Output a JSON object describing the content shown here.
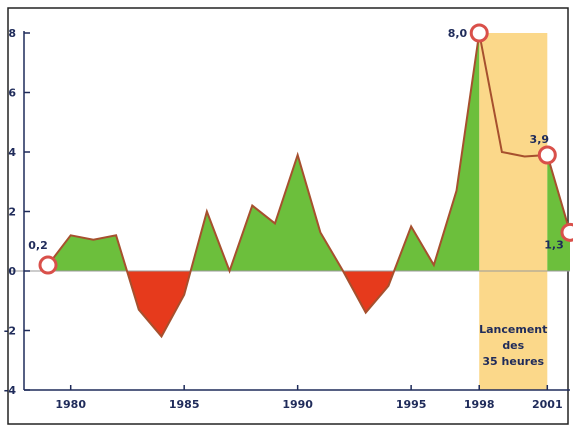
{
  "chart_data": {
    "type": "area",
    "title": "",
    "xlabel": "",
    "ylabel": "",
    "x": [
      1979,
      1980,
      1981,
      1982,
      1983,
      1984,
      1985,
      1986,
      1987,
      1988,
      1989,
      1990,
      1991,
      1992,
      1993,
      1994,
      1995,
      1996,
      1997,
      1998,
      1999,
      2000,
      2001,
      2002
    ],
    "values": [
      0.2,
      1.2,
      1.05,
      1.2,
      -1.3,
      -2.2,
      -0.8,
      2.0,
      0.0,
      2.2,
      1.6,
      3.9,
      1.3,
      0.0,
      -1.4,
      -0.5,
      1.5,
      0.2,
      2.7,
      8.0,
      4.0,
      3.85,
      3.9,
      1.3
    ],
    "xlim": [
      1979,
      2002
    ],
    "ylim": [
      -4,
      8
    ],
    "yticks": [
      "8",
      "6",
      "4",
      "2",
      "0",
      "-2",
      "-4"
    ],
    "xticks": [
      "1980",
      "1985",
      "1990",
      "1995",
      "1998",
      "2001"
    ],
    "highlight_range": [
      1998,
      2001
    ],
    "highlight_label": [
      "Lancement",
      "des",
      "35 heures"
    ],
    "point_labels": [
      {
        "x": 1979,
        "y": 0.2,
        "text": "0,2"
      },
      {
        "x": 1998,
        "y": 8.0,
        "text": "8,0"
      },
      {
        "x": 2001,
        "y": 3.9,
        "text": "3,9"
      },
      {
        "x": 2002,
        "y": 1.3,
        "text": "1,3"
      }
    ],
    "colors": {
      "positive": "#6cbf3c",
      "negative": "#e63a1c",
      "line": "#a6502e",
      "highlight": "#fbd88a",
      "axis": "#1f2b5a",
      "marker_fill": "#ffffff",
      "marker_stroke": "#d9504a"
    }
  }
}
